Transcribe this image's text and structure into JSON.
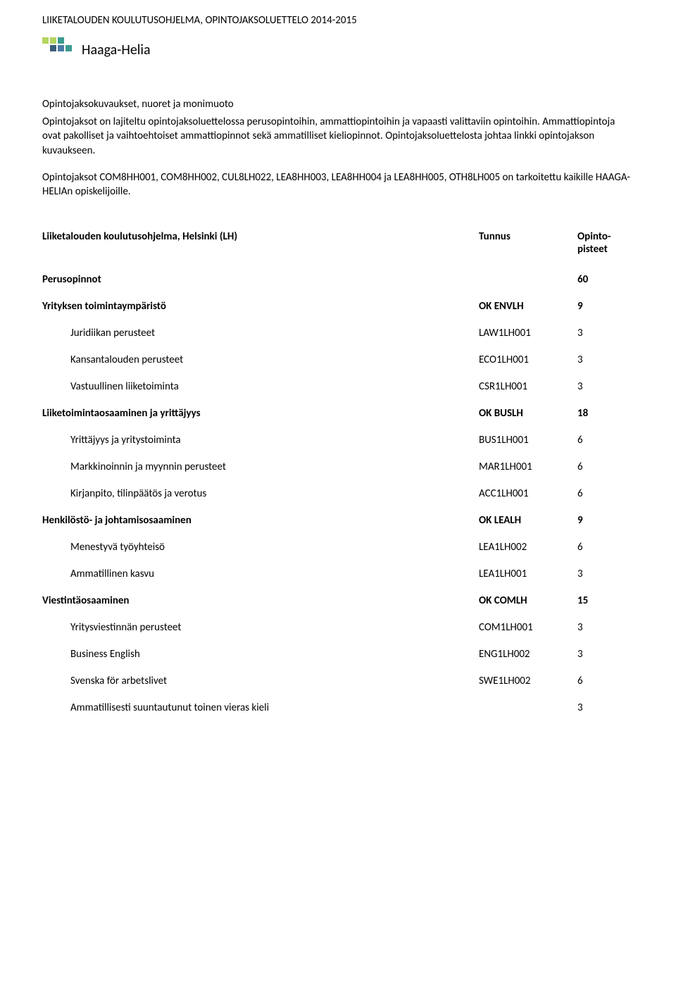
{
  "header_title": "LIIKETALOUDEN KOULUTUSOHJELMA, OPINTOJAKSOLUETTELO 2014-2015",
  "logo_text": "Haaga-Helia",
  "logo_colors": {
    "light_green": "#b5d45f",
    "teal": "#3a9b8f",
    "dark_blue": "#3a5f7a",
    "blue": "#4a7ba5"
  },
  "intro": {
    "heading": "Opintojaksokuvaukset, nuoret ja monimuoto",
    "p1": "Opintojaksot on lajiteltu opintojaksoluettelossa perusopintoihin, ammattiopintoihin ja vapaasti valittaviin opintoihin. Ammattiopintoja ovat pakolliset ja vaihtoehtoiset ammattiopinnot sekä ammatilliset kieliopinnot. Opintojaksoluettelosta johtaa linkki opintojakson kuvaukseen.",
    "p2": "Opintojaksot COM8HH001, COM8HH002, CUL8LH022, LEA8HH003, LEA8HH004 ja LEA8HH005, OTH8LH005 on tarkoitettu kaikille HAAGA-HELIAn opiskelijoille."
  },
  "table_header": {
    "program": "Liiketalouden koulutusohjelma, Helsinki (LH)",
    "tunnus": "Tunnus",
    "pisteet": "Opinto-pisteet"
  },
  "rows": [
    {
      "label": "Perusopinnot",
      "code": "",
      "value": "60",
      "bold": true,
      "indent": false
    },
    {
      "label": "Yrityksen toimintaympäristö",
      "code": "OK ENVLH",
      "value": "9",
      "bold": true,
      "indent": false
    },
    {
      "label": "Juridiikan perusteet",
      "code": "LAW1LH001",
      "value": "3",
      "bold": false,
      "indent": true
    },
    {
      "label": "Kansantalouden perusteet",
      "code": "ECO1LH001",
      "value": "3",
      "bold": false,
      "indent": true
    },
    {
      "label": "Vastuullinen liiketoiminta",
      "code": "CSR1LH001",
      "value": "3",
      "bold": false,
      "indent": true
    },
    {
      "label": "Liiketoimintaosaaminen ja yrittäjyys",
      "code": "OK BUSLH",
      "value": "18",
      "bold": true,
      "indent": false
    },
    {
      "label": "Yrittäjyys ja yritystoiminta",
      "code": "BUS1LH001",
      "value": "6",
      "bold": false,
      "indent": true
    },
    {
      "label": "Markkinoinnin ja myynnin perusteet",
      "code": "MAR1LH001",
      "value": "6",
      "bold": false,
      "indent": true
    },
    {
      "label": "Kirjanpito, tilinpäätös ja verotus",
      "code": "ACC1LH001",
      "value": "6",
      "bold": false,
      "indent": true
    },
    {
      "label": "Henkilöstö- ja johtamisosaaminen",
      "code": "OK LEALH",
      "value": "9",
      "bold": true,
      "indent": false
    },
    {
      "label": "Menestyvä työyhteisö",
      "code": "LEA1LH002",
      "value": "6",
      "bold": false,
      "indent": true
    },
    {
      "label": "Ammatillinen kasvu",
      "code": "LEA1LH001",
      "value": "3",
      "bold": false,
      "indent": true
    },
    {
      "label": "Viestintäosaaminen",
      "code": "OK COMLH",
      "value": "15",
      "bold": true,
      "indent": false
    },
    {
      "label": "Yritysviestinnän perusteet",
      "code": "COM1LH001",
      "value": "3",
      "bold": false,
      "indent": true
    },
    {
      "label": "Business English",
      "code": "ENG1LH002",
      "value": "3",
      "bold": false,
      "indent": true
    },
    {
      "label": "Svenska för arbetslivet",
      "code": "SWE1LH002",
      "value": "6",
      "bold": false,
      "indent": true
    },
    {
      "label": "Ammatillisesti suuntautunut toinen vieras kieli",
      "code": "",
      "value": "3",
      "bold": false,
      "indent": true
    }
  ]
}
